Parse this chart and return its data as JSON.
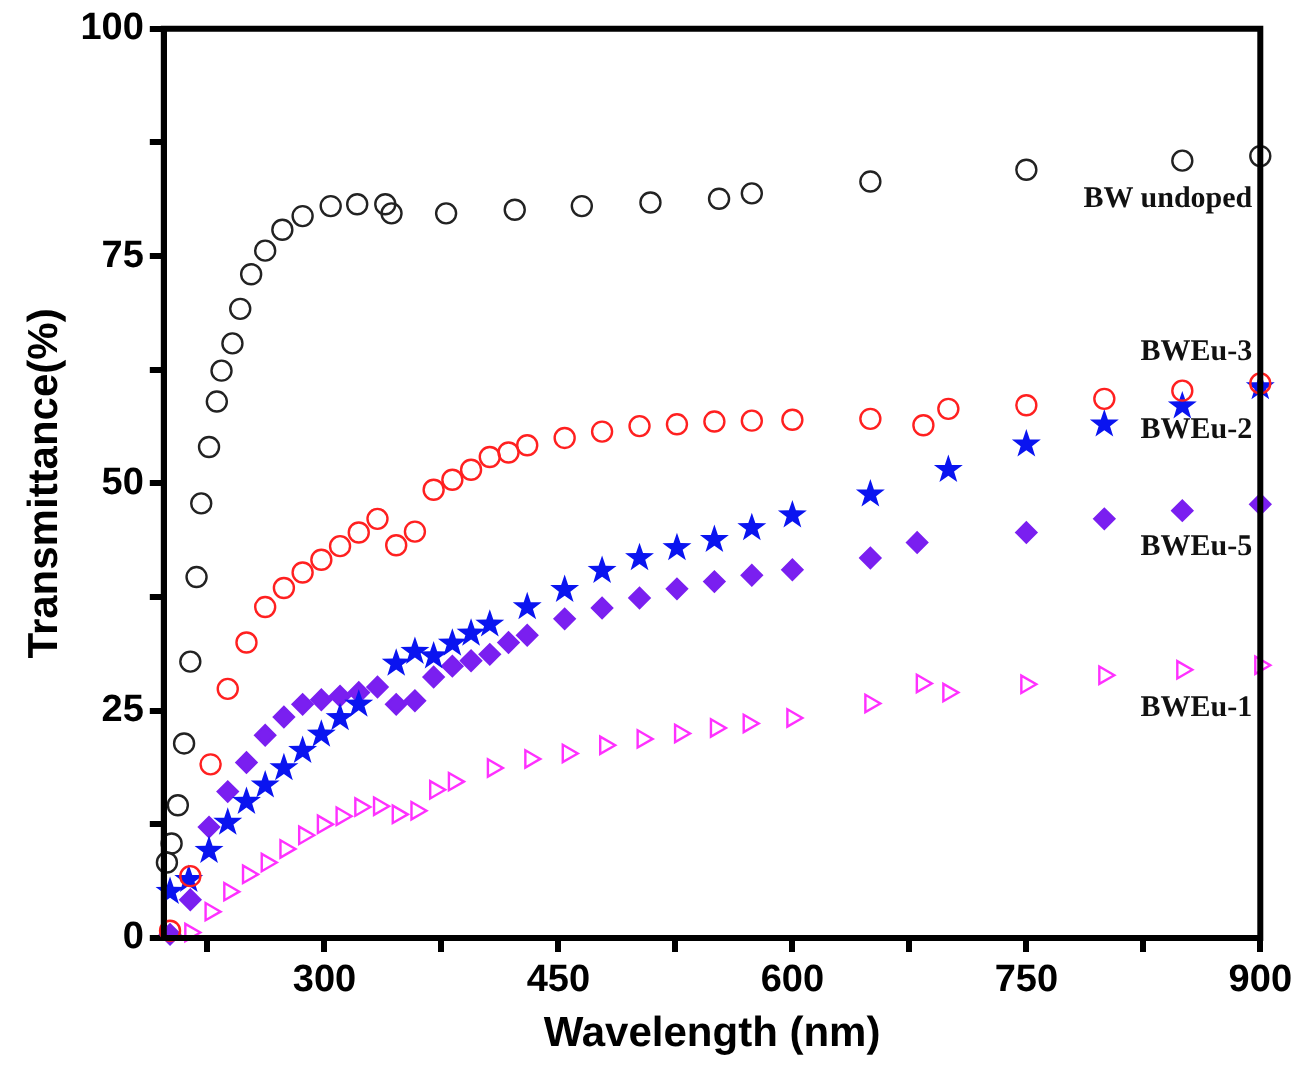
{
  "chart_data": {
    "type": "scatter",
    "xlabel": "Wavelength (nm)",
    "ylabel": "Transmittance(%)",
    "xlim": [
      197,
      900
    ],
    "ylim": [
      0,
      100
    ],
    "xticks": [
      {
        "value": 225,
        "label": null
      },
      300,
      {
        "value": 375,
        "label": null
      },
      450,
      {
        "value": 525,
        "label": null
      },
      600,
      {
        "value": 675,
        "label": null
      },
      750,
      {
        "value": 825,
        "label": null
      },
      900
    ],
    "yticks": [
      0,
      {
        "value": 12.5,
        "label": null
      },
      25,
      {
        "value": 37.5,
        "label": null
      },
      50,
      {
        "value": 62.5,
        "label": null
      },
      75,
      {
        "value": 87.5,
        "label": null
      },
      100
    ],
    "grid": false,
    "legend": "right",
    "series": [
      {
        "name": "BW undoped",
        "color": "#222222",
        "marker": "circle",
        "x": [
          199,
          202,
          206,
          210,
          214,
          218,
          221,
          226,
          231,
          234,
          241,
          246,
          253,
          262,
          273,
          286,
          304,
          321,
          339,
          343,
          378,
          422,
          465,
          509,
          553,
          574,
          650,
          750,
          850,
          900
        ],
        "values": [
          8.3,
          10.4,
          14.6,
          21.4,
          30.4,
          39.7,
          47.8,
          54,
          59,
          62.4,
          65.4,
          69.2,
          73,
          75.6,
          77.9,
          79.4,
          80.5,
          80.7,
          80.7,
          79.7,
          79.7,
          80.1,
          80.5,
          80.9,
          81.3,
          81.9,
          83.2,
          84.5,
          85.5,
          86
        ]
      },
      {
        "name": "BWEu-3",
        "color": "#ff2020",
        "marker": "circle",
        "x": [
          201,
          214,
          227,
          238,
          250,
          262,
          274,
          286,
          298,
          310,
          322,
          334,
          346,
          358,
          370,
          382,
          394,
          406,
          418,
          430,
          454,
          478,
          502,
          526,
          550,
          574,
          600,
          650,
          684,
          700,
          750,
          800,
          850,
          900
        ],
        "values": [
          0.8,
          6.8,
          19.1,
          27.4,
          32.5,
          36.4,
          38.5,
          40.2,
          41.6,
          43.1,
          44.6,
          46.1,
          43.2,
          44.7,
          49.3,
          50.4,
          51.5,
          52.9,
          53.4,
          54.2,
          55,
          55.7,
          56.3,
          56.5,
          56.8,
          56.9,
          57,
          57.1,
          56.4,
          58.2,
          58.6,
          59.3,
          60.2,
          61
        ]
      },
      {
        "name": "BWEu-2",
        "color": "#0a14f0",
        "marker": "star",
        "x": [
          201,
          213,
          226,
          238,
          250,
          262,
          274,
          286,
          298,
          310,
          322,
          346,
          358,
          370,
          382,
          394,
          406,
          430,
          454,
          478,
          502,
          526,
          550,
          574,
          600,
          650,
          700,
          750,
          800,
          850,
          900
        ],
        "values": [
          5.1,
          6.4,
          9.6,
          12.7,
          15,
          16.8,
          18.7,
          20.6,
          22.4,
          24.2,
          25.7,
          30.2,
          31.5,
          31,
          32.4,
          33.5,
          34.5,
          36.4,
          38.3,
          40.4,
          41.8,
          42.9,
          43.8,
          45.1,
          46.5,
          48.8,
          51.5,
          54.3,
          56.5,
          58.5,
          60.6
        ]
      },
      {
        "name": "BWEu-5",
        "color": "#7a1ff0",
        "marker": "diamond",
        "x": [
          201,
          214,
          226,
          238,
          250,
          262,
          274,
          286,
          298,
          310,
          322,
          334,
          346,
          358,
          370,
          382,
          394,
          406,
          418,
          430,
          454,
          478,
          502,
          526,
          550,
          574,
          600,
          650,
          680,
          750,
          800,
          850,
          900
        ],
        "values": [
          0.4,
          4.2,
          12.2,
          16.1,
          19.3,
          22.3,
          24.3,
          25.7,
          26.2,
          26.6,
          27,
          27.6,
          25.7,
          26.1,
          28.7,
          29.9,
          30.5,
          31.2,
          32.5,
          33.3,
          35.1,
          36.3,
          37.4,
          38.4,
          39.2,
          39.9,
          40.5,
          41.8,
          43.5,
          44.6,
          46.1,
          47,
          47.7
        ]
      },
      {
        "name": "BWEu-1",
        "color": "#ff30ff",
        "marker": "triangle",
        "x": [
          214,
          227,
          239,
          251,
          263,
          275,
          287,
          299,
          311,
          323,
          335,
          347,
          359,
          371,
          383,
          408,
          432,
          456,
          480,
          504,
          528,
          551,
          572,
          600,
          650,
          683,
          700,
          750,
          800,
          850,
          900
        ],
        "values": [
          0.6,
          2.9,
          5.1,
          7,
          8.3,
          9.8,
          11.3,
          12.5,
          13.4,
          14.4,
          14.5,
          13.6,
          14,
          16.3,
          17.2,
          18.7,
          19.7,
          20.3,
          21.2,
          21.9,
          22.5,
          23.1,
          23.6,
          24.2,
          25.8,
          28,
          27,
          27.9,
          28.9,
          29.5,
          30
        ]
      }
    ]
  }
}
